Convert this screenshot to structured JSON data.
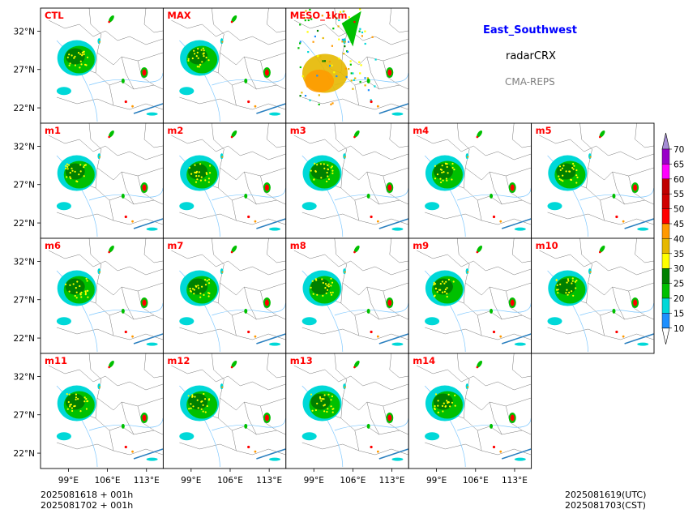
{
  "header": {
    "region": "East_Southwest",
    "variable": "radarCRX",
    "model": "CMA-REPS"
  },
  "footer": {
    "init_line1": "2025081618  +  001h",
    "init_line2": "2025081702  +  001h",
    "valid_line1": "2025081619(UTC)",
    "valid_line2": "2025081703(CST)"
  },
  "chart_data": {
    "type": "heatmap",
    "description_type": "multi-panel map grid",
    "panels": [
      "CTL",
      "MAX",
      "MESO_1km",
      "m1",
      "m2",
      "m3",
      "m4",
      "m5",
      "m6",
      "m7",
      "m8",
      "m9",
      "m10",
      "m11",
      "m12",
      "m13",
      "m14"
    ],
    "panel_label_color": "#ff0000",
    "y_ticks": [
      "32°N",
      "27°N",
      "22°N"
    ],
    "x_ticks": [
      "99°E",
      "106°E",
      "113°E"
    ],
    "lat_range": [
      20,
      35
    ],
    "lon_range": [
      94,
      116
    ],
    "colorbar": {
      "levels": [
        10,
        15,
        20,
        25,
        30,
        35,
        40,
        45,
        50,
        55,
        60,
        65,
        70
      ],
      "colors": [
        "#1e90ff",
        "#00d8d8",
        "#00c000",
        "#008000",
        "#ffff00",
        "#e6b800",
        "#ff9900",
        "#ff0000",
        "#d00000",
        "#c00000",
        "#ff00ff",
        "#9900c8",
        "#a58dd6"
      ],
      "extend": "both"
    }
  }
}
